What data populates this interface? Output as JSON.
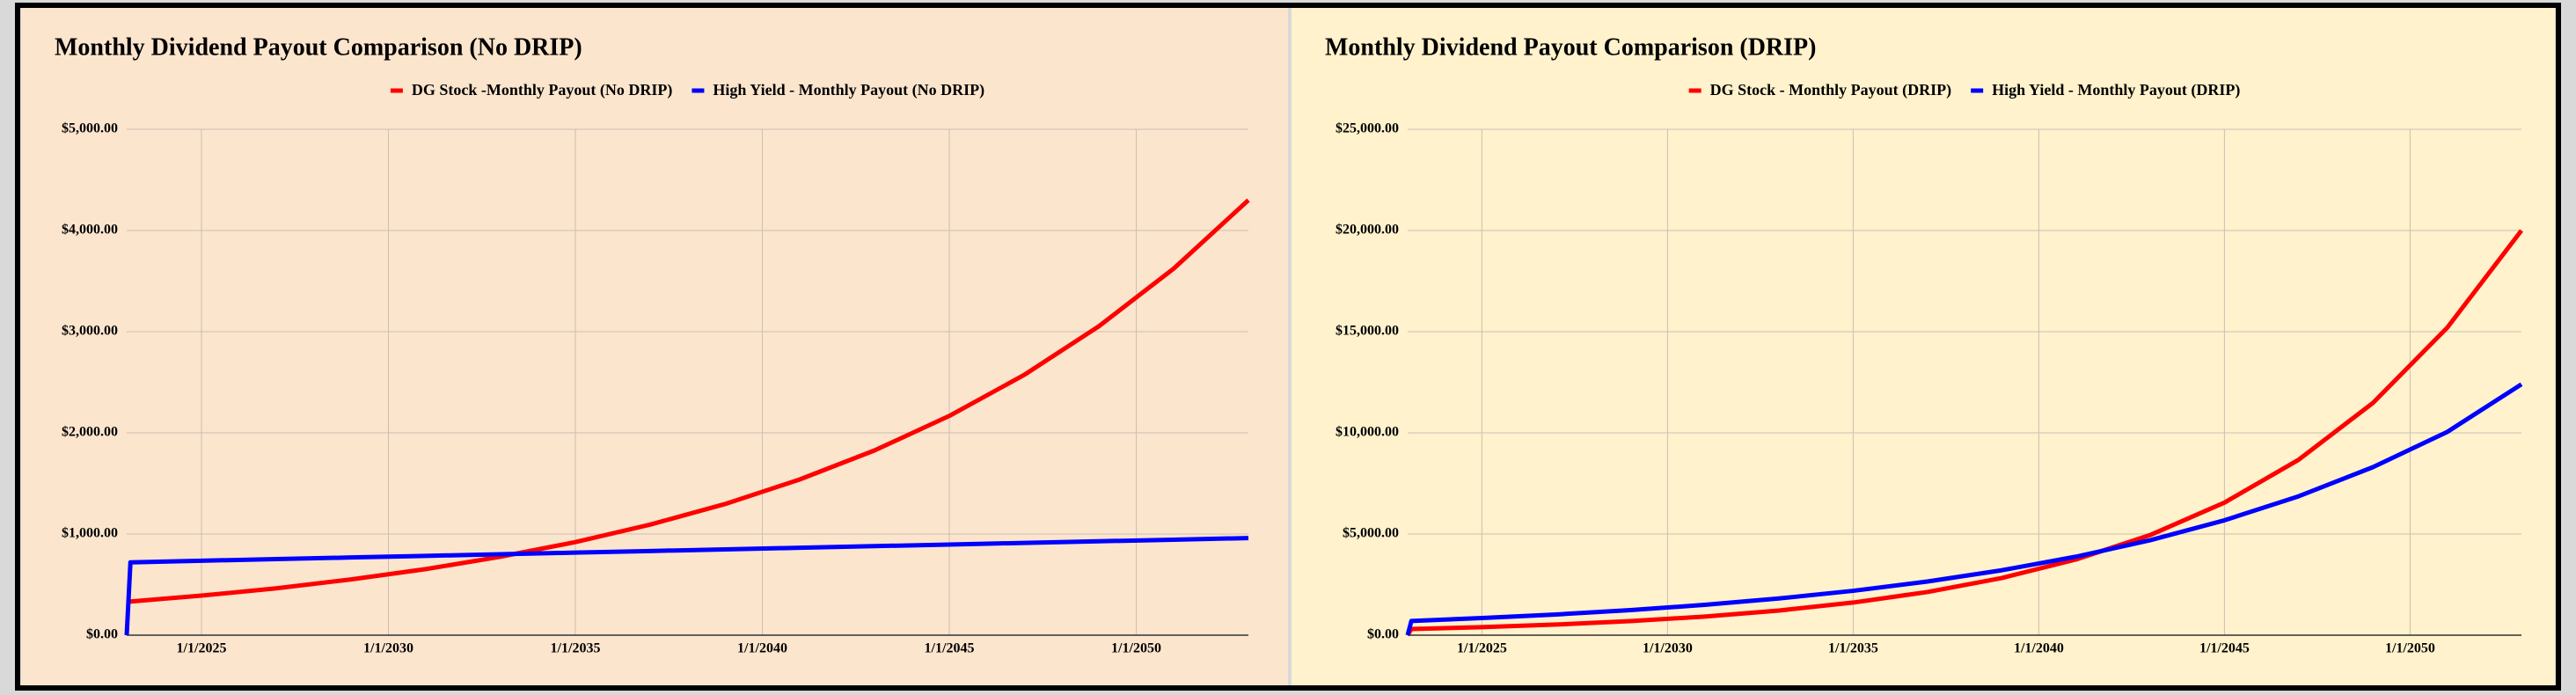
{
  "chart_data": [
    {
      "type": "line",
      "title": "Monthly Dividend Payout Comparison (No DRIP)",
      "background": "#fce5cd",
      "x": [
        2023,
        2023.1,
        2025,
        2027,
        2029,
        2031,
        2033,
        2035,
        2037,
        2039,
        2041,
        2043,
        2045,
        2047,
        2049,
        2051,
        2053
      ],
      "series": [
        {
          "name": "DG Stock -Monthly Payout (No DRIP)",
          "color": "#ff0000",
          "values": [
            330,
            333,
            391,
            463,
            551,
            653,
            776,
            920,
            1093,
            1296,
            1539,
            1826,
            2167,
            2572,
            3053,
            3623,
            4300
          ]
        },
        {
          "name": "High Yield - Monthly Payout (No DRIP)",
          "color": "#0000ff",
          "values": [
            0,
            720,
            736,
            752,
            768,
            784,
            800,
            816,
            832,
            848,
            864,
            880,
            896,
            912,
            928,
            944,
            960
          ]
        }
      ],
      "xlim": [
        2023,
        2053
      ],
      "xticks": [
        {
          "value": 2025,
          "label": "1/1/2025"
        },
        {
          "value": 2030,
          "label": "1/1/2030"
        },
        {
          "value": 2035,
          "label": "1/1/2035"
        },
        {
          "value": 2040,
          "label": "1/1/2040"
        },
        {
          "value": 2045,
          "label": "1/1/2045"
        },
        {
          "value": 2050,
          "label": "1/1/2050"
        }
      ],
      "ylim": [
        0,
        5000
      ],
      "yticks": [
        {
          "value": 0,
          "label": "$0.00"
        },
        {
          "value": 1000,
          "label": "$1,000.00"
        },
        {
          "value": 2000,
          "label": "$2,000.00"
        },
        {
          "value": 3000,
          "label": "$3,000.00"
        },
        {
          "value": 4000,
          "label": "$4,000.00"
        },
        {
          "value": 5000,
          "label": "$5,000.00"
        }
      ],
      "grid": true,
      "legend": "top"
    },
    {
      "type": "line",
      "title": "Monthly Dividend Payout Comparison (DRIP)",
      "background": "#fff2cc",
      "x": [
        2023,
        2023.1,
        2025,
        2027,
        2029,
        2031,
        2033,
        2035,
        2037,
        2039,
        2041,
        2043,
        2045,
        2047,
        2049,
        2051,
        2053
      ],
      "series": [
        {
          "name": "DG Stock - Monthly Payout (DRIP)",
          "color": "#ff0000",
          "values": [
            0,
            304,
            397,
            525,
            695,
            920,
            1218,
            1612,
            2134,
            2825,
            3739,
            4949,
            6552,
            8672,
            11480,
            15196,
            20000
          ]
        },
        {
          "name": "High Yield - Monthly Payout (DRIP)",
          "color": "#0000ff",
          "values": [
            0,
            700,
            847,
            1024,
            1239,
            1499,
            1813,
            2193,
            2652,
            3208,
            3880,
            4693,
            5677,
            6866,
            8305,
            10045,
            12400
          ]
        }
      ],
      "xlim": [
        2023,
        2053
      ],
      "xticks": [
        {
          "value": 2025,
          "label": "1/1/2025"
        },
        {
          "value": 2030,
          "label": "1/1/2030"
        },
        {
          "value": 2035,
          "label": "1/1/2035"
        },
        {
          "value": 2040,
          "label": "1/1/2040"
        },
        {
          "value": 2045,
          "label": "1/1/2045"
        },
        {
          "value": 2050,
          "label": "1/1/2050"
        }
      ],
      "ylim": [
        0,
        25000
      ],
      "yticks": [
        {
          "value": 0,
          "label": "$0.00"
        },
        {
          "value": 5000,
          "label": "$5,000.00"
        },
        {
          "value": 10000,
          "label": "$10,000.00"
        },
        {
          "value": 15000,
          "label": "$15,000.00"
        },
        {
          "value": 20000,
          "label": "$20,000.00"
        },
        {
          "value": 25000,
          "label": "$25,000.00"
        }
      ],
      "grid": true,
      "legend": "top"
    }
  ]
}
